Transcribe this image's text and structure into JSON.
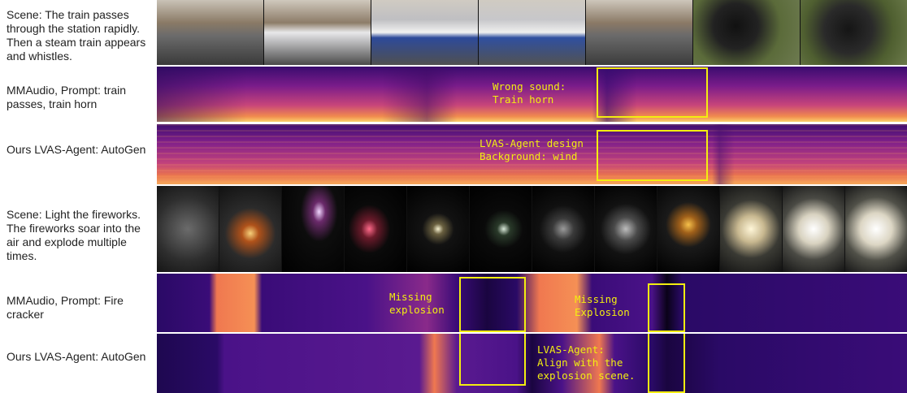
{
  "labels": {
    "scene1": "Scene: The train passes through the station rapidly. Then a steam train appears and whistles.",
    "mm1": "MMAudio, Prompt: train passes, train horn",
    "ours1": "Ours LVAS-Agent: AutoGen",
    "scene2": "Scene: Light the fireworks. The fireworks soar into the air and explode multiple times.",
    "mm2": "MMAudio, Prompt: Fire cracker",
    "ours2": "Ours LVAS-Agent: AutoGen"
  },
  "annotations": {
    "a1_line1": "Wrong sound:",
    "a1_line2": "Train horn",
    "a2_line1": "LVAS-Agent design",
    "a2_line2": "Background: wind",
    "a3_line1": "Missing",
    "a3_line2": "explosion",
    "a4_line1": "Missing",
    "a4_line2": "Explosion",
    "a5_line1": "LVAS-Agent:",
    "a5_line2": "Align with the",
    "a5_line3": "explosion scene."
  },
  "colors": {
    "annotation": "#f3ee10"
  }
}
